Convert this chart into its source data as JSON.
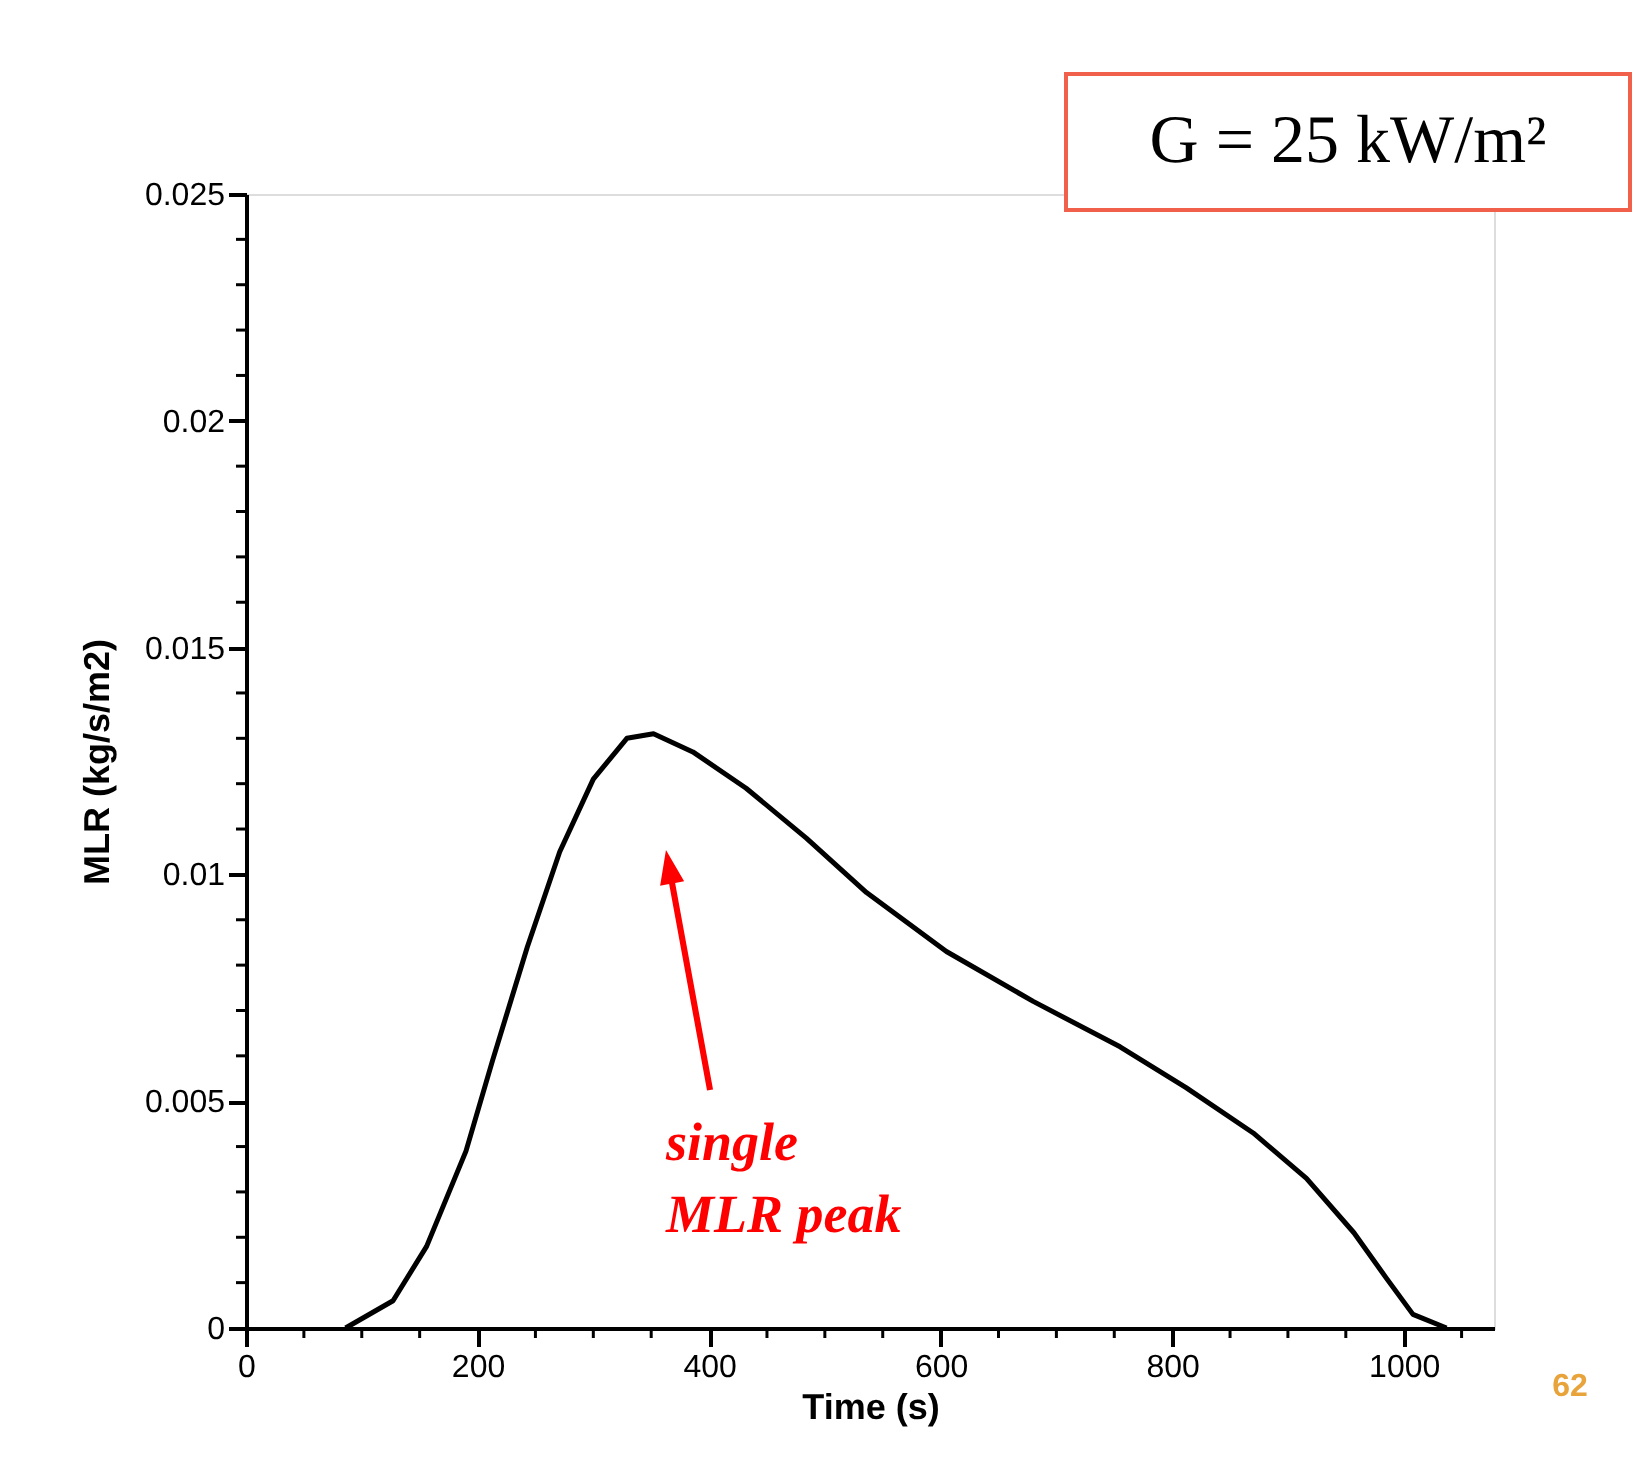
{
  "chart_data": {
    "type": "line",
    "title": "G = 25 kW/m²",
    "xlabel": "Time (s)",
    "ylabel": "MLR (kg/s/m2)",
    "x": [
      86,
      127,
      156,
      190,
      213,
      243,
      271,
      300,
      329,
      352,
      386,
      432,
      484,
      536,
      605,
      680,
      755,
      812,
      870,
      916,
      957,
      985,
      1008,
      1037
    ],
    "series": [
      {
        "color": "#000000",
        "values": [
          0,
          0.0006,
          0.0018,
          0.0039,
          0.0059,
          0.0084,
          0.0105,
          0.0121,
          0.013,
          0.0131,
          0.0127,
          0.0119,
          0.0108,
          0.0096,
          0.0083,
          0.0072,
          0.0062,
          0.0053,
          0.0043,
          0.0033,
          0.0021,
          0.0011,
          0.0003,
          0
        ]
      }
    ],
    "xlim": [
      0,
      1078
    ],
    "ylim": [
      0,
      0.025
    ],
    "xticks": [
      0,
      {
        "value": 50,
        "label": null
      },
      {
        "value": 100,
        "label": null
      },
      {
        "value": 150,
        "label": null
      },
      200,
      {
        "value": 250,
        "label": null
      },
      {
        "value": 300,
        "label": null
      },
      {
        "value": 350,
        "label": null
      },
      400,
      {
        "value": 450,
        "label": null
      },
      {
        "value": 500,
        "label": null
      },
      {
        "value": 550,
        "label": null
      },
      600,
      {
        "value": 650,
        "label": null
      },
      {
        "value": 700,
        "label": null
      },
      {
        "value": 750,
        "label": null
      },
      800,
      {
        "value": 850,
        "label": null
      },
      {
        "value": 900,
        "label": null
      },
      {
        "value": 950,
        "label": null
      },
      1000,
      {
        "value": 1050,
        "label": null
      }
    ],
    "yticks": [
      0,
      {
        "value": 0.001,
        "label": null
      },
      {
        "value": 0.002,
        "label": null
      },
      {
        "value": 0.003,
        "label": null
      },
      {
        "value": 0.004,
        "label": null
      },
      0.005,
      {
        "value": 0.006,
        "label": null
      },
      {
        "value": 0.007,
        "label": null
      },
      {
        "value": 0.008,
        "label": null
      },
      {
        "value": 0.009,
        "label": null
      },
      0.01,
      {
        "value": 0.011,
        "label": null
      },
      {
        "value": 0.012,
        "label": null
      },
      {
        "value": 0.013,
        "label": null
      },
      {
        "value": 0.014,
        "label": null
      },
      0.015,
      {
        "value": 0.016,
        "label": null
      },
      {
        "value": 0.017,
        "label": null
      },
      {
        "value": 0.018,
        "label": null
      },
      {
        "value": 0.019,
        "label": null
      },
      0.02,
      {
        "value": 0.021,
        "label": null
      },
      {
        "value": 0.022,
        "label": null
      },
      {
        "value": 0.023,
        "label": null
      },
      {
        "value": 0.024,
        "label": null
      },
      0.025
    ],
    "grid": false,
    "marker": "none",
    "line_style": "solid",
    "annotations": [
      "single\nMLR peak",
      "62"
    ]
  }
}
